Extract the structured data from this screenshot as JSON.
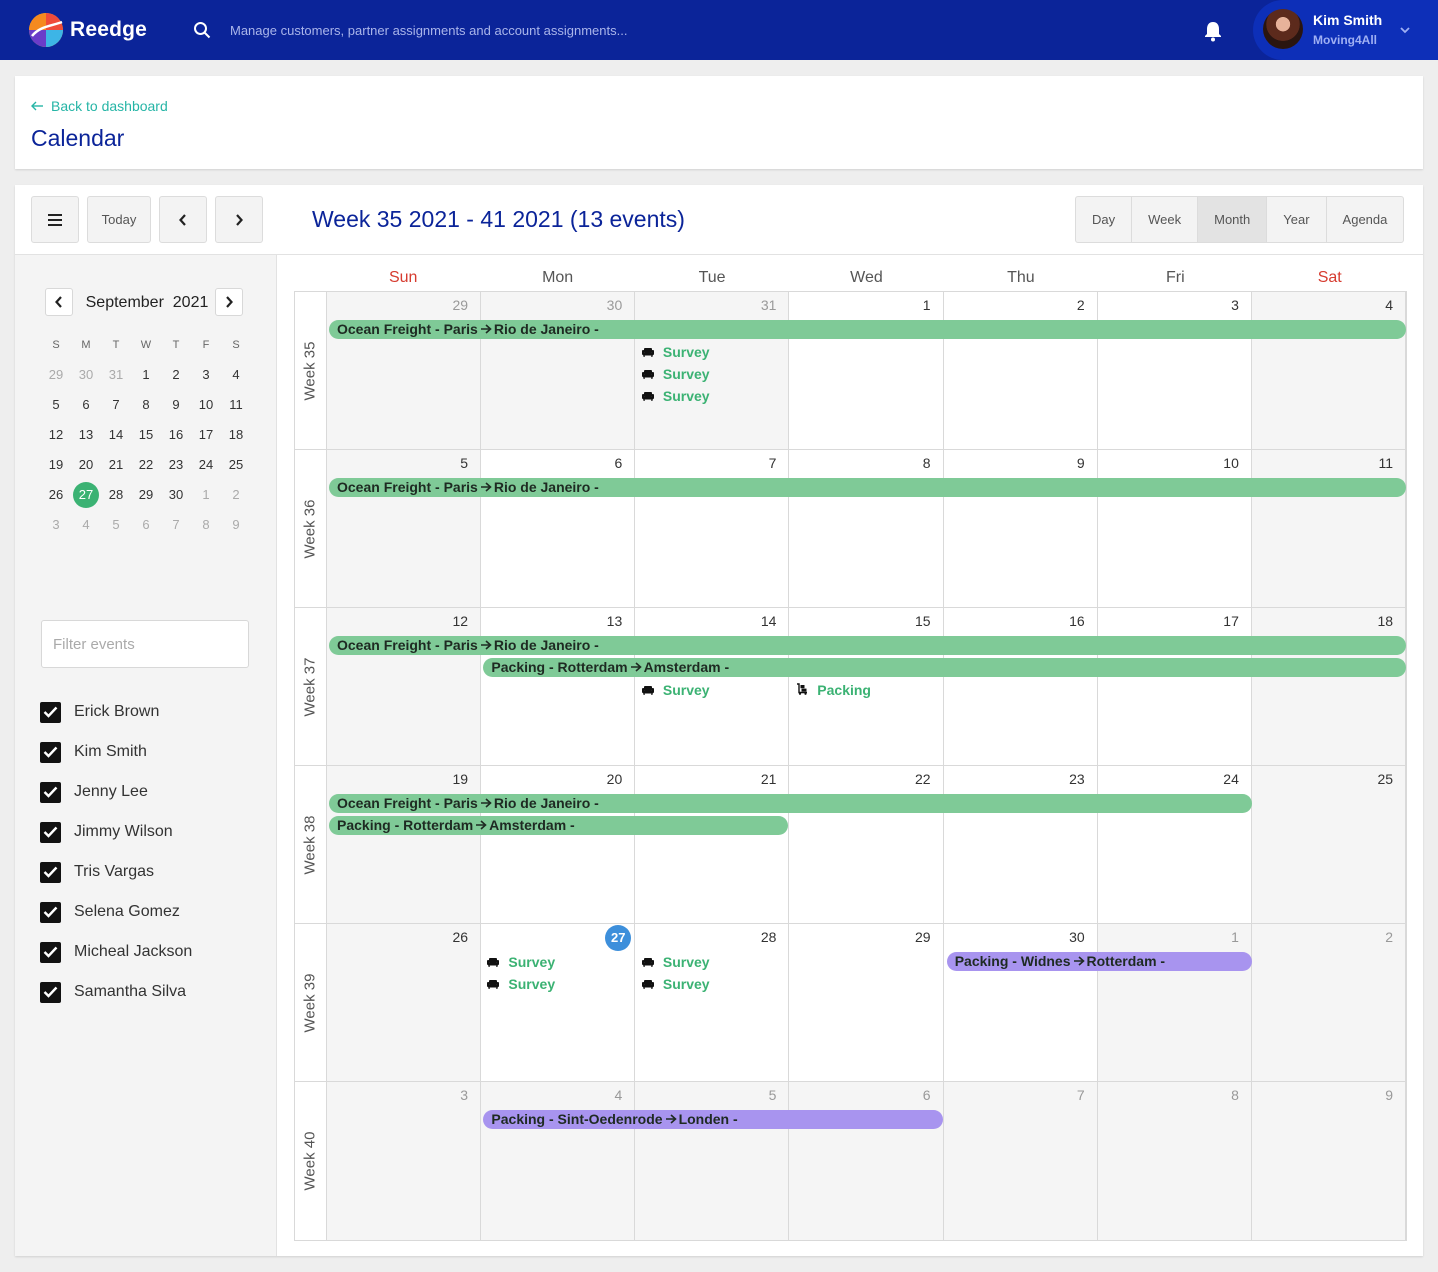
{
  "app": {
    "brand": "Reedge"
  },
  "search": {
    "placeholder": "Manage customers, partner assignments and account assignments..."
  },
  "user": {
    "name": "Kim Smith",
    "org": "Moving4All"
  },
  "header": {
    "back_label": "Back to dashboard",
    "title": "Calendar"
  },
  "toolbar": {
    "today_label": "Today",
    "range_title": "Week 35 2021 - 41 2021 (13 events)",
    "views": [
      {
        "label": "Day",
        "active": false
      },
      {
        "label": "Week",
        "active": false
      },
      {
        "label": "Month",
        "active": true
      },
      {
        "label": "Year",
        "active": false
      },
      {
        "label": "Agenda",
        "active": false
      }
    ]
  },
  "mini_calendar": {
    "month": "September",
    "year": "2021",
    "dow": [
      "S",
      "M",
      "T",
      "W",
      "T",
      "F",
      "S"
    ],
    "weeks": [
      [
        "29",
        "30",
        "31",
        "1",
        "2",
        "3",
        "4"
      ],
      [
        "5",
        "6",
        "7",
        "8",
        "9",
        "10",
        "11"
      ],
      [
        "12",
        "13",
        "14",
        "15",
        "16",
        "17",
        "18"
      ],
      [
        "19",
        "20",
        "21",
        "22",
        "23",
        "24",
        "25"
      ],
      [
        "26",
        "27",
        "28",
        "29",
        "30",
        "1",
        "2"
      ],
      [
        "3",
        "4",
        "5",
        "6",
        "7",
        "8",
        "9"
      ]
    ],
    "today": "27"
  },
  "filter": {
    "placeholder": "Filter events"
  },
  "people": [
    "Erick Brown",
    "Kim Smith",
    "Jenny Lee",
    "Jimmy Wilson",
    "Tris Vargas",
    "Selena Gomez",
    "Micheal Jackson",
    "Samantha Silva"
  ],
  "calendar": {
    "dow": [
      "Sun",
      "Mon",
      "Tue",
      "Wed",
      "Thu",
      "Fri",
      "Sat"
    ],
    "weeks": [
      {
        "label": "Week 35",
        "days": [
          "29",
          "30",
          "31",
          "1",
          "2",
          "3",
          "4"
        ]
      },
      {
        "label": "Week 36",
        "days": [
          "5",
          "6",
          "7",
          "8",
          "9",
          "10",
          "11"
        ]
      },
      {
        "label": "Week 37",
        "days": [
          "12",
          "13",
          "14",
          "15",
          "16",
          "17",
          "18"
        ]
      },
      {
        "label": "Week 38",
        "days": [
          "19",
          "20",
          "21",
          "22",
          "23",
          "24",
          "25"
        ]
      },
      {
        "label": "Week 39",
        "days": [
          "26",
          "27",
          "28",
          "29",
          "30",
          "1",
          "2"
        ]
      },
      {
        "label": "Week 40",
        "days": [
          "3",
          "4",
          "5",
          "6",
          "7",
          "8",
          "9"
        ]
      }
    ],
    "bars": [
      {
        "week": 0,
        "start": 0,
        "end": 6,
        "lane": 0,
        "color": "green",
        "from": "Ocean Freight - Paris",
        "to": "Rio de Janeiro -"
      },
      {
        "week": 1,
        "start": 0,
        "end": 6,
        "lane": 0,
        "color": "green",
        "from": "Ocean Freight - Paris",
        "to": "Rio de Janeiro -"
      },
      {
        "week": 2,
        "start": 0,
        "end": 6,
        "lane": 0,
        "color": "green",
        "from": "Ocean Freight - Paris",
        "to": "Rio de Janeiro -"
      },
      {
        "week": 2,
        "start": 1,
        "end": 6,
        "lane": 1,
        "color": "green",
        "from": "Packing - Rotterdam",
        "to": "Amsterdam -"
      },
      {
        "week": 3,
        "start": 0,
        "end": 5,
        "lane": 0,
        "color": "green",
        "from": "Ocean Freight - Paris",
        "to": "Rio de Janeiro -"
      },
      {
        "week": 3,
        "start": 0,
        "end": 2,
        "lane": 1,
        "color": "green",
        "from": "Packing - Rotterdam",
        "to": "Amsterdam -"
      },
      {
        "week": 4,
        "start": 4,
        "end": 5,
        "lane": 0,
        "color": "purple",
        "from": "Packing - Widnes",
        "to": "Rotterdam -"
      },
      {
        "week": 5,
        "start": 1,
        "end": 3,
        "lane": 0,
        "color": "purple",
        "from": "Packing - Sint-Oedenrode",
        "to": "Londen -"
      }
    ],
    "events": [
      {
        "week": 0,
        "day": 2,
        "lane": 1,
        "icon": "sofa",
        "label": "Survey"
      },
      {
        "week": 0,
        "day": 2,
        "lane": 2,
        "icon": "sofa",
        "label": "Survey"
      },
      {
        "week": 0,
        "day": 2,
        "lane": 3,
        "icon": "sofa",
        "label": "Survey"
      },
      {
        "week": 2,
        "day": 2,
        "lane": 2,
        "icon": "sofa",
        "label": "Survey"
      },
      {
        "week": 2,
        "day": 3,
        "lane": 2,
        "icon": "dolly",
        "label": "Packing"
      },
      {
        "week": 4,
        "day": 1,
        "lane": 0,
        "icon": "sofa",
        "label": "Survey"
      },
      {
        "week": 4,
        "day": 1,
        "lane": 1,
        "icon": "sofa",
        "label": "Survey"
      },
      {
        "week": 4,
        "day": 2,
        "lane": 0,
        "icon": "sofa",
        "label": "Survey"
      },
      {
        "week": 4,
        "day": 2,
        "lane": 1,
        "icon": "sofa",
        "label": "Survey"
      }
    ],
    "today": {
      "week": 4,
      "day": 1
    }
  },
  "colors": {
    "topbar": "#0b2499",
    "accent": "#26b5a6",
    "event_green": "#7fca97",
    "event_purple": "#a894ef",
    "today_blue": "#3d8fdb"
  }
}
